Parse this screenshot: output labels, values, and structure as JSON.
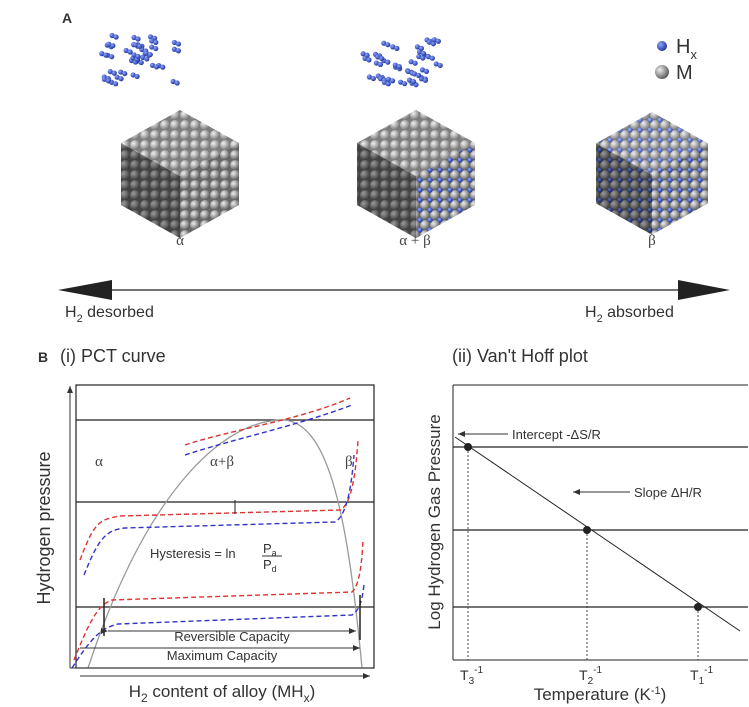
{
  "panel_a": {
    "label": "A",
    "legend": [
      {
        "symbol": "H",
        "sub": "x"
      },
      {
        "symbol": "M"
      }
    ],
    "phases": [
      "α",
      "α + β",
      "β"
    ],
    "left_arrow": {
      "main": "H",
      "sub": "2",
      "rest": " desorbed"
    },
    "right_arrow": {
      "main": "H",
      "sub": "2",
      "rest": " absorbed"
    }
  },
  "panel_b": {
    "label": "B",
    "pct": {
      "title": "(i) PCT curve",
      "y_label": "Hydrogen pressure",
      "x_label": {
        "main": "H",
        "sub": "2",
        "rest": " content of alloy (MH",
        "sub2": "x",
        "end": ")"
      },
      "regions": [
        "α",
        "α+β",
        "β"
      ],
      "hysteresis": {
        "text": "Hysteresis = ln",
        "num": "P",
        "num_sub": "a",
        "den": "P",
        "den_sub": "d"
      },
      "reversible": "Reversible Capacity",
      "maximum": "Maximum Capacity"
    },
    "vanthoff": {
      "title": "(ii) Van't Hoff plot",
      "y_label": "Log Hydrogen Gas Pressure",
      "x_label": {
        "main": "Temperature (K",
        "sup": "-1",
        "end": ")"
      },
      "intercept": "Intercept -ΔS/R",
      "slope": "Slope ΔH/R",
      "ticks": [
        {
          "main": "T",
          "sub": "3",
          "sup": "-1"
        },
        {
          "main": "T",
          "sub": "2",
          "sup": "-1"
        },
        {
          "main": "T",
          "sub": "1",
          "sup": "-1"
        }
      ]
    }
  }
}
